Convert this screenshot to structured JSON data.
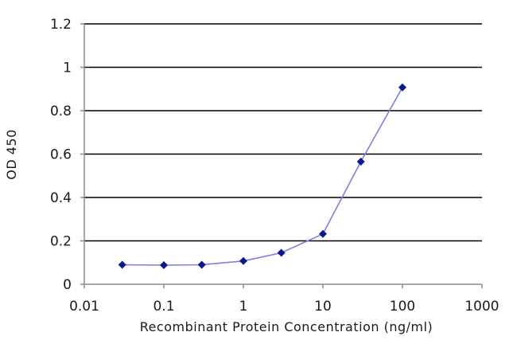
{
  "chart_data": {
    "type": "line",
    "title": "",
    "xlabel": "Recombinant Protein Concentration (ng/ml)",
    "ylabel": "OD 450",
    "x_scale": "log",
    "xlim": [
      0.01,
      1000
    ],
    "ylim": [
      0,
      1.2
    ],
    "x_ticks": [
      0.01,
      0.1,
      1,
      10,
      100,
      1000
    ],
    "x_tick_labels": [
      "0.01",
      "0.1",
      "1",
      "10",
      "100",
      "1000"
    ],
    "y_ticks": [
      0,
      0.2,
      0.4,
      0.6,
      0.8,
      1,
      1.2
    ],
    "y_tick_labels": [
      "0",
      "0.2",
      "0.4",
      "0.6",
      "0.8",
      "1",
      "1.2"
    ],
    "grid": {
      "horizontal": true,
      "vertical": false
    },
    "legend": "none",
    "colors": {
      "line": "#7f7fe0",
      "marker": "#0a1a8c",
      "grid": "#000000",
      "axis": "#8a8a8a"
    },
    "series": [
      {
        "x": [
          0.03,
          0.1,
          0.3,
          1,
          3,
          10,
          30,
          100
        ],
        "y": [
          0.09,
          0.088,
          0.09,
          0.107,
          0.145,
          0.232,
          0.565,
          0.907
        ]
      }
    ]
  }
}
